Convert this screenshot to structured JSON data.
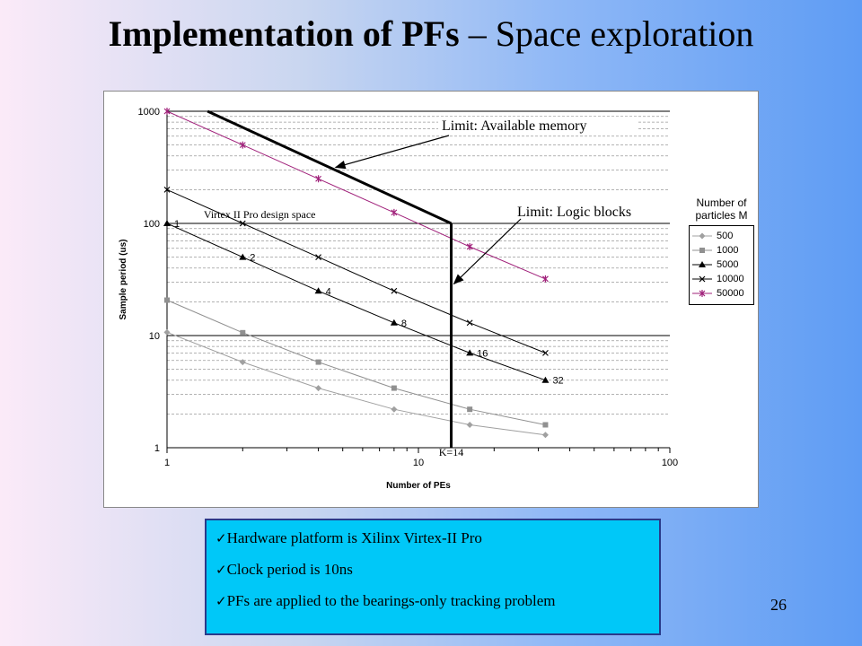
{
  "slide": {
    "title_bold": "Implementation of PFs",
    "title_rest": " – Space exploration",
    "page_number": "26"
  },
  "notes": [
    "Hardware platform is Xilinx Virtex-II Pro",
    "Clock period is 10ns",
    "PFs are applied to the bearings-only tracking problem"
  ],
  "chart_data": {
    "type": "line",
    "xlabel": "Number of PEs",
    "ylabel": "Sample period (us)",
    "x_scale": "log",
    "y_scale": "log",
    "xlim": [
      1,
      100
    ],
    "ylim": [
      1,
      1000
    ],
    "x_ticks": [
      "1",
      "10",
      "100"
    ],
    "y_ticks": [
      "1",
      "10",
      "100",
      "1000"
    ],
    "grid": true,
    "legend_title": "Number of particles M",
    "legend_position": "right",
    "series": [
      {
        "name": "500",
        "marker": "diamond",
        "color": "#a0a0a0",
        "x": [
          1,
          2,
          4,
          8,
          16,
          32
        ],
        "y": [
          10.7,
          5.8,
          3.4,
          2.2,
          1.6,
          1.3
        ]
      },
      {
        "name": "1000",
        "marker": "square",
        "color": "#909090",
        "x": [
          1,
          2,
          4,
          8,
          16,
          32
        ],
        "y": [
          20.7,
          10.6,
          5.8,
          3.4,
          2.2,
          1.6
        ]
      },
      {
        "name": "5000",
        "marker": "triangle",
        "color": "#000000",
        "x": [
          1,
          2,
          4,
          8,
          16,
          32
        ],
        "y": [
          100,
          50,
          25,
          13,
          7,
          4
        ]
      },
      {
        "name": "10000",
        "marker": "x",
        "color": "#000000",
        "x": [
          1,
          2,
          4,
          8,
          16,
          32
        ],
        "y": [
          200,
          100,
          50,
          25,
          13,
          7
        ]
      },
      {
        "name": "50000",
        "marker": "star",
        "color": "#a0207a",
        "x": [
          1,
          2,
          4,
          8,
          16,
          32
        ],
        "y": [
          1000,
          500,
          250,
          125,
          62,
          32
        ]
      }
    ],
    "point_labels": [
      {
        "text": "1",
        "x": 1,
        "y": 100
      },
      {
        "text": "2",
        "x": 2,
        "y": 50
      },
      {
        "text": "4",
        "x": 4,
        "y": 25
      },
      {
        "text": "8",
        "x": 8,
        "y": 13
      },
      {
        "text": "16",
        "x": 16,
        "y": 7
      },
      {
        "text": "32",
        "x": 32,
        "y": 4
      }
    ],
    "design_space_label": "Virtex II Pro design space",
    "memory_limit": {
      "label": "Limit: Available memory",
      "from": [
        1.45,
        1000
      ],
      "to": [
        13.5,
        100
      ]
    },
    "logic_limit": {
      "label": "Limit: Logic blocks",
      "x": 13.5,
      "y_top": 100,
      "y_bottom": 1,
      "x_label": "K=14"
    }
  }
}
